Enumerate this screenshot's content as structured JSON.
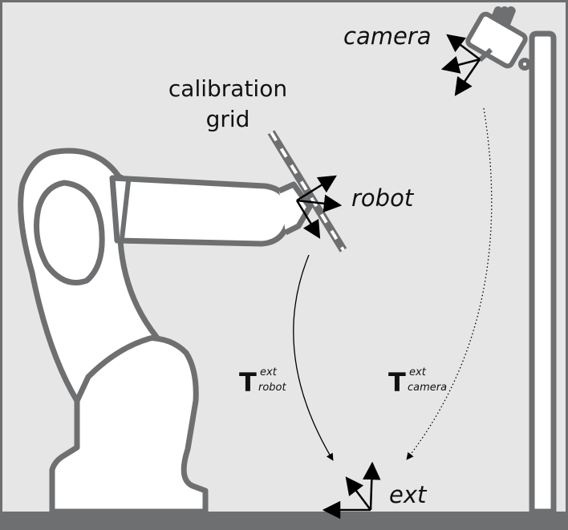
{
  "labels": {
    "camera": "camera",
    "calibration_line1": "calibration",
    "calibration_line2": "grid",
    "robot": "robot",
    "ext": "ext"
  },
  "transforms": {
    "robot": {
      "symbol": "T",
      "superscript": "ext",
      "subscript": "robot"
    },
    "camera": {
      "symbol": "T",
      "superscript": "ext",
      "subscript": "camera"
    }
  },
  "colors": {
    "background": "#e6e6e6",
    "outline": "#6e6f71",
    "body_fill": "#ffffff",
    "arrow": "#000000",
    "frame": "#000000"
  }
}
